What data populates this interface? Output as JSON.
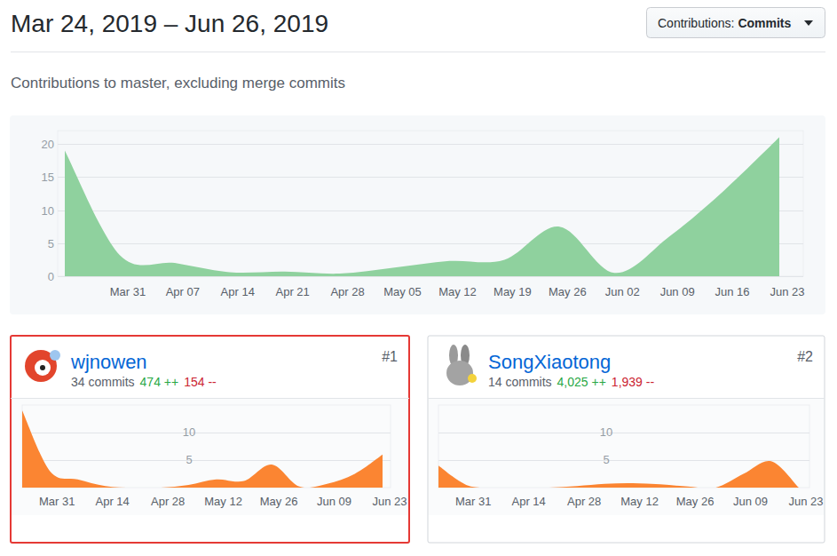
{
  "header": {
    "title": "Mar 24, 2019 – Jun 26, 2019",
    "filter_label": "Contributions:",
    "filter_value": "Commits",
    "subtitle": "Contributions to master, excluding merge commits"
  },
  "contributors": [
    {
      "rank": "#1",
      "name": "wjnowen",
      "commits": "34 commits",
      "additions": "474 ++",
      "deletions": "154 --"
    },
    {
      "rank": "#2",
      "name": "SongXiaotong",
      "commits": "14 commits",
      "additions": "4,025 ++",
      "deletions": "1,939 --"
    }
  ],
  "chart_data": [
    {
      "type": "area",
      "color": "#8fd19e",
      "grid": true,
      "categories": [
        null,
        "Mar 31",
        "Apr 07",
        "Apr 14",
        "Apr 21",
        "Apr 28",
        "May 05",
        "May 12",
        "May 19",
        "May 26",
        "Jun 02",
        "Jun 09",
        "Jun 16",
        "Jun 23"
      ],
      "values": [
        19,
        3.2,
        2,
        0.6,
        0.7,
        0.4,
        1.3,
        2.3,
        2.5,
        7.5,
        0.5,
        6,
        13,
        21
      ],
      "ylim": [
        0,
        22
      ],
      "yticks": [
        0,
        5,
        10,
        15,
        20
      ]
    },
    {
      "type": "area",
      "color": "#fb8532",
      "grid": true,
      "categories": [
        null,
        "Mar 31",
        null,
        "Apr 14",
        null,
        "Apr 28",
        null,
        "May 12",
        null,
        "May 26",
        null,
        "Jun 09",
        null,
        "Jun 23"
      ],
      "values": [
        14,
        3,
        1.5,
        0.3,
        0,
        0,
        0.5,
        1.5,
        1.2,
        4.2,
        0.2,
        0.7,
        2.5,
        6
      ],
      "ylim": [
        0,
        15
      ],
      "yticks": [
        5,
        10
      ]
    },
    {
      "type": "area",
      "color": "#fb8532",
      "grid": true,
      "categories": [
        null,
        "Mar 31",
        null,
        "Apr 14",
        null,
        "Apr 28",
        null,
        "May 12",
        null,
        "May 26",
        null,
        "Jun 09",
        null,
        "Jun 23"
      ],
      "values": [
        4,
        0.5,
        0,
        0,
        0,
        0.3,
        0.7,
        0.8,
        0.6,
        0.2,
        0,
        2.5,
        4.8,
        0
      ],
      "ylim": [
        0,
        15
      ],
      "yticks": [
        5,
        10
      ]
    }
  ]
}
